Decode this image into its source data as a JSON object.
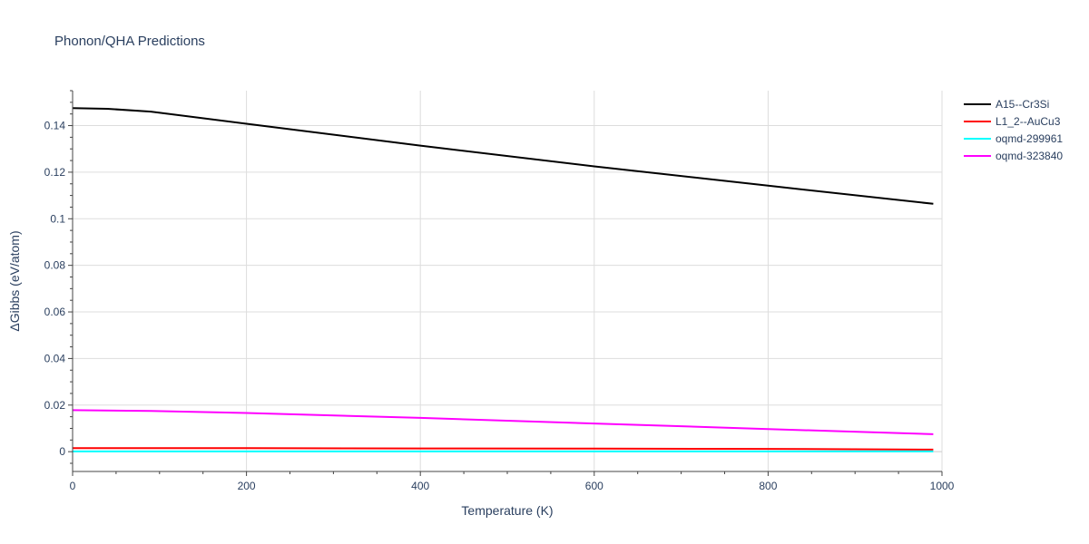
{
  "chart_data": {
    "type": "line",
    "title": "Phonon/QHA Predictions",
    "xlabel": "Temperature (K)",
    "ylabel": "ΔGibbs (eV/atom)",
    "xlim": [
      0,
      1000
    ],
    "ylim": [
      -0.0085,
      0.155
    ],
    "x_ticks": [
      0,
      200,
      400,
      600,
      800,
      1000
    ],
    "y_ticks": [
      0,
      0.02,
      0.04,
      0.06,
      0.08,
      0.1,
      0.12,
      0.14
    ],
    "x_tick_labels": [
      "0",
      "200",
      "400",
      "600",
      "800",
      "1000"
    ],
    "y_tick_labels": [
      "0",
      "0.02",
      "0.04",
      "0.06",
      "0.08",
      "0.1",
      "0.12",
      "0.14"
    ],
    "grid": true,
    "legend_position": "top-right",
    "series": [
      {
        "name": "A15--Cr3Si",
        "color": "#000000",
        "x": [
          0,
          40,
          90,
          200,
          400,
          600,
          800,
          990
        ],
        "y": [
          0.1475,
          0.1472,
          0.146,
          0.1408,
          0.1314,
          0.1225,
          0.1142,
          0.1064
        ]
      },
      {
        "name": "L1_2--AuCu3",
        "color": "#ff0000",
        "x": [
          0,
          200,
          400,
          600,
          800,
          990
        ],
        "y": [
          0.0015,
          0.0015,
          0.0014,
          0.0013,
          0.0012,
          0.0009
        ]
      },
      {
        "name": "oqmd-299961",
        "color": "#00ffff",
        "x": [
          0,
          200,
          400,
          600,
          800,
          990
        ],
        "y": [
          0.0001,
          0.0001,
          0.0001,
          0.0001,
          0.0001,
          0.0001
        ]
      },
      {
        "name": "oqmd-323840",
        "color": "#ff00ff",
        "x": [
          0,
          90,
          200,
          400,
          600,
          800,
          990
        ],
        "y": [
          0.0178,
          0.0175,
          0.0166,
          0.0145,
          0.0121,
          0.0097,
          0.0075
        ]
      }
    ]
  }
}
